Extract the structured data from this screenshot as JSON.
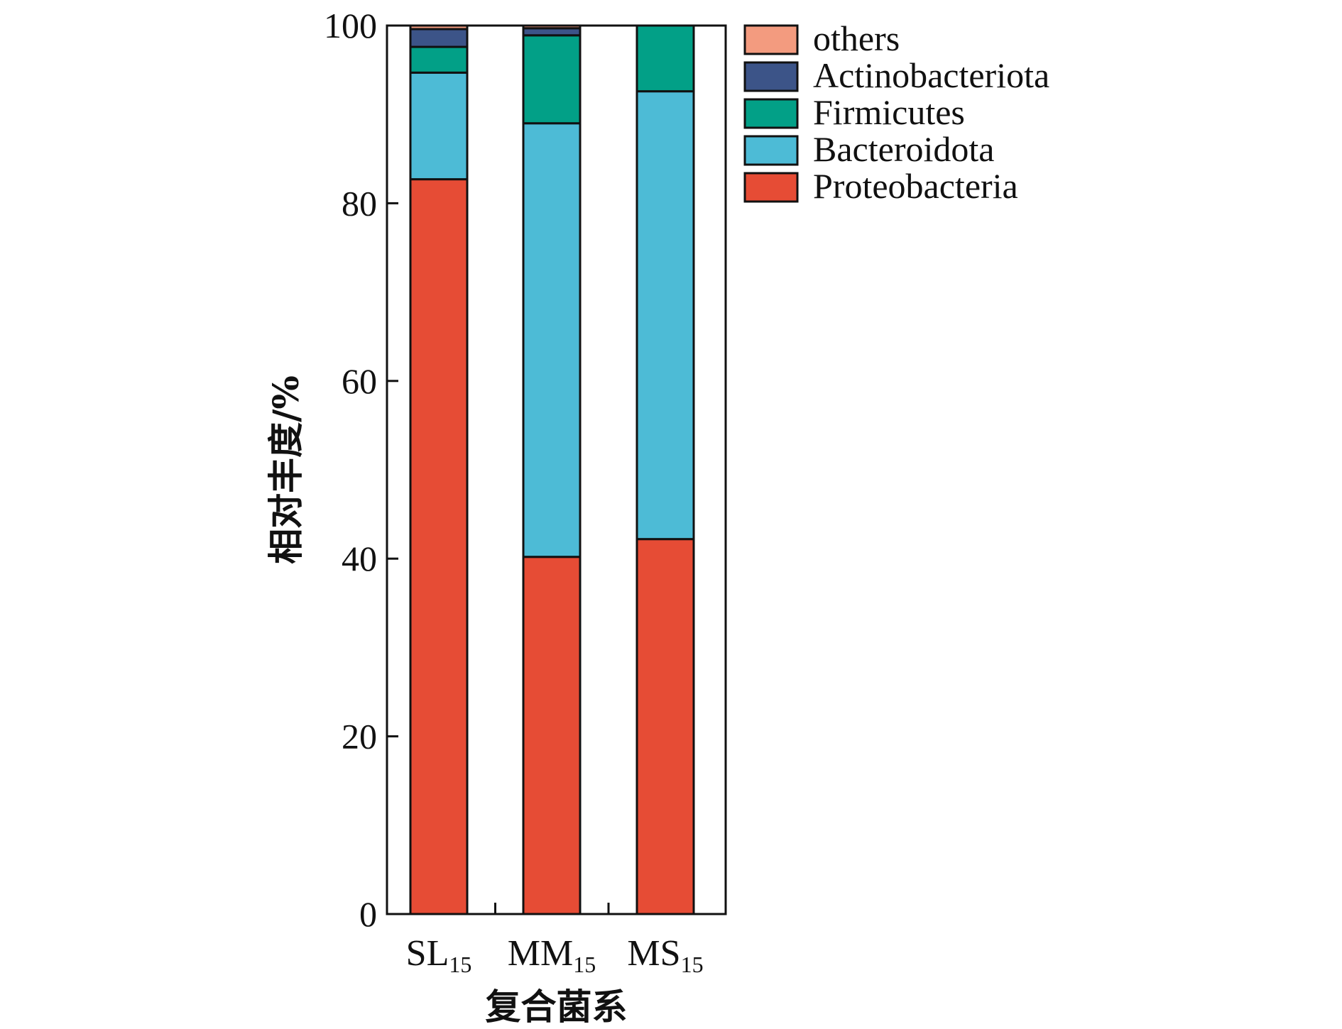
{
  "chart_data": {
    "type": "bar",
    "stacked": true,
    "categories": [
      {
        "base": "SL",
        "sub": "15"
      },
      {
        "base": "MM",
        "sub": "15"
      },
      {
        "base": "MS",
        "sub": "15"
      }
    ],
    "series": [
      {
        "name": "Proteobacteria",
        "color": "#e64c35",
        "values": [
          82.7,
          40.2,
          42.2
        ]
      },
      {
        "name": "Bacteroidota",
        "color": "#4dbbd6",
        "values": [
          12.0,
          48.8,
          50.4
        ]
      },
      {
        "name": "Firmicutes",
        "color": "#02a087",
        "values": [
          2.9,
          9.9,
          7.4
        ]
      },
      {
        "name": "Actinobacteriota",
        "color": "#3c5488",
        "values": [
          2.0,
          0.8,
          0.0
        ]
      },
      {
        "name": "others",
        "color": "#f39b7f",
        "values": [
          0.4,
          0.3,
          0.0
        ]
      }
    ],
    "legend_order": [
      "others",
      "Actinobacteriota",
      "Firmicutes",
      "Bacteroidota",
      "Proteobacteria"
    ],
    "legend_position": "top-right, outside plot",
    "xlabel": "复合菌系",
    "ylabel": "相对丰度/%",
    "ylim": [
      0,
      100
    ],
    "yticks": [
      0,
      20,
      40,
      60,
      80,
      100
    ],
    "grid": false
  }
}
